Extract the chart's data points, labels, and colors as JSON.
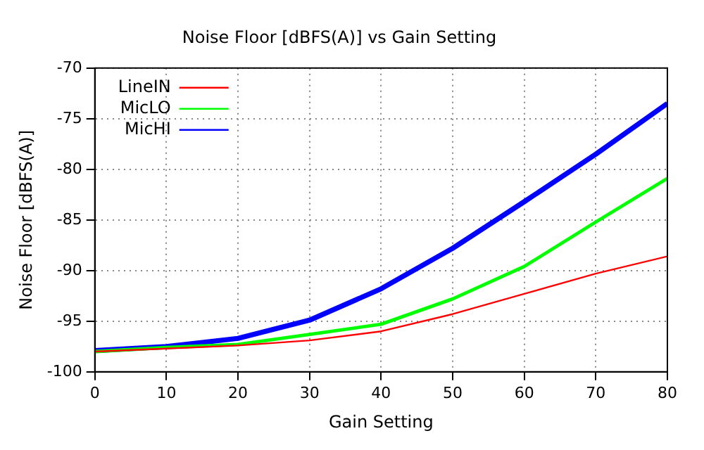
{
  "chart_data": {
    "type": "line",
    "title": "Noise Floor [dBFS(A)] vs Gain Setting",
    "xlabel": "Gain Setting",
    "ylabel": "Noise Floor [dBFS(A)]",
    "x": [
      0,
      10,
      20,
      30,
      40,
      50,
      60,
      70,
      80
    ],
    "series": [
      {
        "name": "LineIN",
        "color": "#ff0000",
        "values": [
          -98,
          -97.7,
          -97.4,
          -96.9,
          -96.0,
          -94.3,
          -92.3,
          -90.3,
          -88.6
        ]
      },
      {
        "name": "MicLO",
        "color": "#00ff00",
        "values": [
          -98,
          -97.6,
          -97.3,
          -96.3,
          -95.3,
          -92.8,
          -89.6,
          -85.2,
          -80.9
        ]
      },
      {
        "name": "MicHI",
        "color": "#0000ff",
        "values": [
          -97.9,
          -97.5,
          -96.7,
          -94.9,
          -91.8,
          -87.8,
          -83.2,
          -78.5,
          -73.5
        ]
      }
    ],
    "xlim": [
      0,
      80
    ],
    "xticks": [
      0,
      10,
      20,
      30,
      40,
      50,
      60,
      70,
      80
    ],
    "ylim": [
      -100,
      -70
    ],
    "yticks": [
      -100,
      -95,
      -90,
      -85,
      -80,
      -75,
      -70
    ],
    "grid": true,
    "legend": "top left",
    "marker": "none",
    "line_style": "solid"
  }
}
